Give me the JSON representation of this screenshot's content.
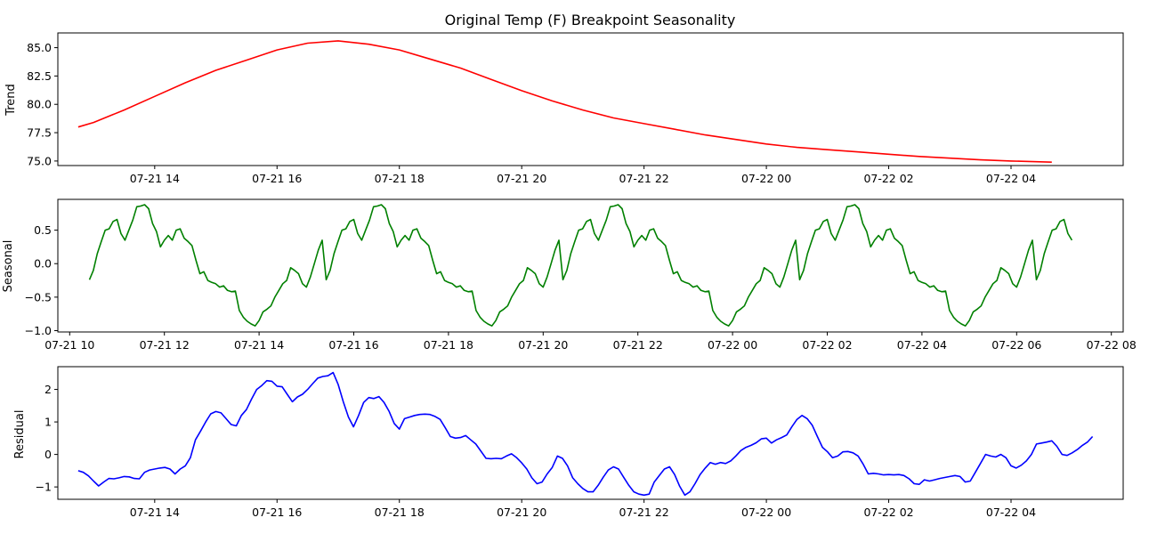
{
  "figure": {
    "title": "Original Temp (F) Breakpoint Seasonality"
  },
  "chart_data": [
    {
      "type": "line",
      "ylabel": "Trend",
      "color": "#ff0000",
      "x_range": [
        "07-21 12:25",
        "07-22 05:50"
      ],
      "ylim": [
        74.6,
        86.3
      ],
      "yticks": [
        75.0,
        77.5,
        80.0,
        82.5,
        85.0
      ],
      "ytick_labels": [
        "75.0",
        "77.5",
        "80.0",
        "82.5",
        "85.0"
      ],
      "xtick_labels": [
        "07-21 14",
        "07-21 16",
        "07-21 18",
        "07-21 20",
        "07-21 22",
        "07-22 00",
        "07-22 02",
        "07-22 04"
      ],
      "xtick_values": [
        "07-21 14:00",
        "07-21 16:00",
        "07-21 18:00",
        "07-21 20:00",
        "07-21 22:00",
        "07-22 00:00",
        "07-22 02:00",
        "07-22 04:00"
      ],
      "series": [
        {
          "x": [
            "07-21 12:45",
            "07-21 13:00",
            "07-21 13:30",
            "07-21 14:00",
            "07-21 14:30",
            "07-21 15:00",
            "07-21 15:30",
            "07-21 16:00",
            "07-21 16:30",
            "07-21 17:00",
            "07-21 17:30",
            "07-21 18:00",
            "07-21 18:30",
            "07-21 19:00",
            "07-21 19:30",
            "07-21 20:00",
            "07-21 20:30",
            "07-21 21:00",
            "07-21 21:30",
            "07-21 22:00",
            "07-21 22:30",
            "07-21 23:00",
            "07-21 23:30",
            "07-22 00:00",
            "07-22 00:30",
            "07-22 01:00",
            "07-22 01:30",
            "07-22 02:00",
            "07-22 02:30",
            "07-22 03:00",
            "07-22 03:30",
            "07-22 04:00",
            "07-22 04:40"
          ],
          "y": [
            78.0,
            78.4,
            79.5,
            80.7,
            81.9,
            83.0,
            83.9,
            84.8,
            85.4,
            85.6,
            85.3,
            84.8,
            84.0,
            83.2,
            82.2,
            81.2,
            80.3,
            79.5,
            78.8,
            78.3,
            77.8,
            77.3,
            76.9,
            76.5,
            76.2,
            76.0,
            75.8,
            75.6,
            75.4,
            75.25,
            75.1,
            75.0,
            74.9
          ]
        }
      ]
    },
    {
      "type": "line",
      "ylabel": "Seasonal",
      "color": "#008000",
      "x_range": [
        "07-21 09:45",
        "07-22 08:15"
      ],
      "ylim": [
        -1.02,
        0.96
      ],
      "yticks": [
        -1.0,
        -0.5,
        0.0,
        0.5
      ],
      "ytick_labels": [
        "−1.0",
        "−0.5",
        "0.0",
        "0.5"
      ],
      "xtick_labels": [
        "07-21 10",
        "07-21 12",
        "07-21 14",
        "07-21 16",
        "07-21 18",
        "07-21 20",
        "07-21 22",
        "07-22 00",
        "07-22 02",
        "07-22 04",
        "07-22 06",
        "07-22 08"
      ],
      "xtick_values": [
        "07-21 10:00",
        "07-21 12:00",
        "07-21 14:00",
        "07-21 16:00",
        "07-21 18:00",
        "07-21 20:00",
        "07-21 22:00",
        "07-22 00:00",
        "07-22 02:00",
        "07-22 04:00",
        "07-22 06:00",
        "07-22 08:00"
      ],
      "period_hours": 5.0,
      "series": [
        {
          "x_start": "07-21 10:25",
          "x_end": "07-22 07:10",
          "pattern_step_minutes": 5,
          "pattern": [
            -0.24,
            -0.1,
            0.15,
            0.33,
            0.5,
            0.52,
            0.63,
            0.66,
            0.45,
            0.35,
            0.5,
            0.65,
            0.85,
            0.86,
            0.88,
            0.82,
            0.6,
            0.48,
            0.25,
            0.35,
            0.42,
            0.35,
            0.5,
            0.52,
            0.38,
            0.33,
            0.27,
            0.05,
            -0.15,
            -0.12,
            -0.25,
            -0.28,
            -0.3,
            -0.35,
            -0.33,
            -0.4,
            -0.42,
            -0.41,
            -0.7,
            -0.8,
            -0.86,
            -0.9,
            -0.93,
            -0.85,
            -0.72,
            -0.68,
            -0.63,
            -0.5,
            -0.4,
            -0.3,
            -0.25,
            -0.06,
            -0.1,
            -0.15,
            -0.3,
            -0.35,
            -0.2,
            0.0,
            0.2,
            0.35
          ]
        }
      ]
    },
    {
      "type": "line",
      "ylabel": "Residual",
      "color": "#0000ff",
      "x_range": [
        "07-21 12:25",
        "07-22 05:50"
      ],
      "ylim": [
        -1.38,
        2.7
      ],
      "yticks": [
        -1,
        0,
        1,
        2
      ],
      "ytick_labels": [
        "−1",
        "0",
        "1",
        "2"
      ],
      "xtick_labels": [
        "07-21 14",
        "07-21 16",
        "07-21 18",
        "07-21 20",
        "07-21 22",
        "07-22 00",
        "07-22 02",
        "07-22 04"
      ],
      "xtick_values": [
        "07-21 14:00",
        "07-21 16:00",
        "07-21 18:00",
        "07-21 20:00",
        "07-21 22:00",
        "07-22 00:00",
        "07-22 02:00",
        "07-22 04:00"
      ],
      "series": [
        {
          "x_start": "07-21 12:45",
          "x_step_minutes": 5,
          "y": [
            -0.5,
            -0.55,
            -0.66,
            -0.82,
            -0.97,
            -0.85,
            -0.74,
            -0.75,
            -0.72,
            -0.68,
            -0.69,
            -0.74,
            -0.75,
            -0.55,
            -0.48,
            -0.45,
            -0.42,
            -0.4,
            -0.45,
            -0.6,
            -0.45,
            -0.35,
            -0.1,
            0.45,
            0.72,
            1.0,
            1.25,
            1.32,
            1.28,
            1.1,
            0.92,
            0.88,
            1.2,
            1.38,
            1.7,
            2.0,
            2.12,
            2.27,
            2.25,
            2.1,
            2.08,
            1.85,
            1.62,
            1.77,
            1.85,
            2.0,
            2.18,
            2.35,
            2.4,
            2.42,
            2.52,
            2.15,
            1.62,
            1.15,
            0.85,
            1.2,
            1.6,
            1.75,
            1.72,
            1.78,
            1.6,
            1.32,
            0.95,
            0.78,
            1.1,
            1.15,
            1.2,
            1.23,
            1.24,
            1.23,
            1.17,
            1.08,
            0.82,
            0.55,
            0.5,
            0.52,
            0.58,
            0.45,
            0.32,
            0.1,
            -0.12,
            -0.13,
            -0.12,
            -0.13,
            -0.05,
            0.02,
            -0.1,
            -0.26,
            -0.45,
            -0.72,
            -0.9,
            -0.85,
            -0.6,
            -0.4,
            -0.05,
            -0.12,
            -0.35,
            -0.72,
            -0.9,
            -1.05,
            -1.15,
            -1.15,
            -0.95,
            -0.7,
            -0.48,
            -0.38,
            -0.45,
            -0.7,
            -0.95,
            -1.15,
            -1.22,
            -1.25,
            -1.22,
            -0.85,
            -0.65,
            -0.45,
            -0.38,
            -0.62,
            -0.98,
            -1.25,
            -1.15,
            -0.9,
            -0.62,
            -0.42,
            -0.25,
            -0.3,
            -0.25,
            -0.28,
            -0.2,
            -0.05,
            0.12,
            0.22,
            0.28,
            0.36,
            0.48,
            0.5,
            0.35,
            0.45,
            0.52,
            0.6,
            0.85,
            1.08,
            1.2,
            1.1,
            0.9,
            0.55,
            0.22,
            0.08,
            -0.1,
            -0.05,
            0.08,
            0.09,
            0.05,
            -0.05,
            -0.3,
            -0.6,
            -0.58,
            -0.6,
            -0.63,
            -0.62,
            -0.63,
            -0.62,
            -0.65,
            -0.75,
            -0.9,
            -0.92,
            -0.78,
            -0.82,
            -0.78,
            -0.74,
            -0.71,
            -0.68,
            -0.65,
            -0.68,
            -0.85,
            -0.82,
            -0.55,
            -0.28,
            0.0,
            -0.05,
            -0.08,
            0.0,
            -0.1,
            -0.35,
            -0.42,
            -0.33,
            -0.2,
            0.0,
            0.32,
            0.35,
            0.38,
            0.42,
            0.25,
            0.0,
            -0.03,
            0.05,
            0.15,
            0.28,
            0.38,
            0.55
          ]
        }
      ]
    }
  ]
}
